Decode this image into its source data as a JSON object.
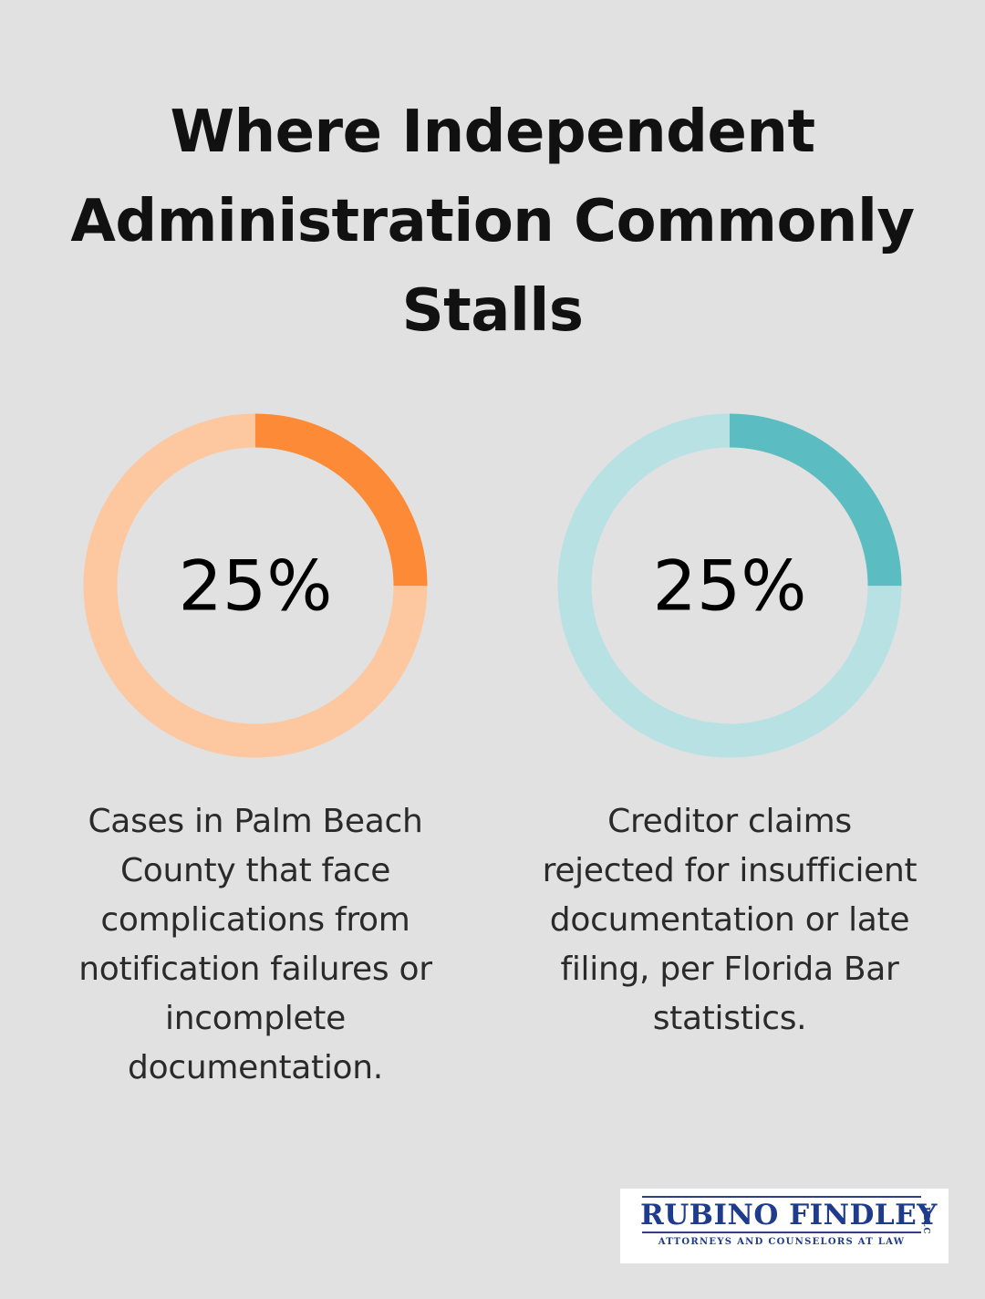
{
  "title": "Where Independent Administration Commonly Stalls",
  "colors": {
    "background": "#e0e1e0",
    "left_accent": "#fd8a36",
    "left_track": "#fdc79f",
    "right_accent": "#5bbcc1",
    "right_track": "#b7e1e3",
    "logo_blue": "#1f3c8c"
  },
  "chart_data": [
    {
      "type": "pie",
      "value": 25,
      "label": "25%",
      "description": "Cases in Palm Beach County that face complications from notification failures or incomplete documentation."
    },
    {
      "type": "pie",
      "value": 25,
      "label": "25%",
      "description": "Creditor claims rejected for insufficient documentation or late filing, per Florida Bar statistics."
    }
  ],
  "logo": {
    "name": "RUBINO FINDLEY",
    "suffix": "PLLC",
    "tagline": "ATTORNEYS AND COUNSELORS AT LAW"
  }
}
